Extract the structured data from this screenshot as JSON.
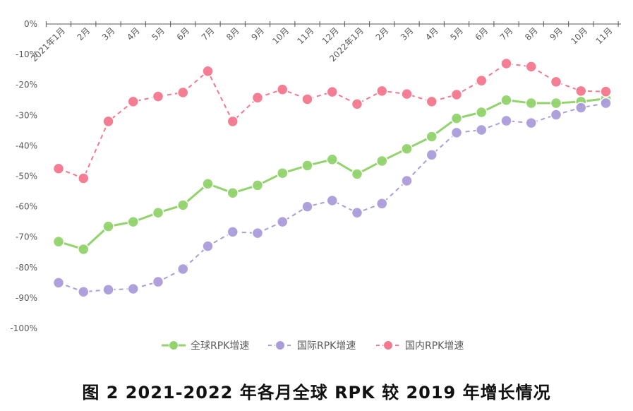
{
  "caption": "图 2 2021-2022 年各月全球 RPK 较 2019 年增长情况",
  "chart_data": {
    "type": "line",
    "title": "",
    "xlabel": "",
    "ylabel": "",
    "ylim": [
      -100,
      0
    ],
    "y_ticks": [
      "0%",
      "-10%",
      "-20%",
      "-30%",
      "-40%",
      "-50%",
      "-60%",
      "-70%",
      "-80%",
      "-90%",
      "-100%"
    ],
    "y_tick_values": [
      0,
      -10,
      -20,
      -30,
      -40,
      -50,
      -60,
      -70,
      -80,
      -90,
      -100
    ],
    "categories": [
      "2021年1月",
      "2月",
      "3月",
      "4月",
      "5月",
      "6月",
      "7月",
      "8月",
      "9月",
      "10月",
      "11月",
      "12月",
      "2022年1月",
      "2月",
      "3月",
      "4月",
      "5月",
      "6月",
      "7月",
      "8月",
      "9月",
      "10月",
      "11月"
    ],
    "legend_position": "bottom",
    "series": [
      {
        "name": "全球RPK增速",
        "color": "#92d36e",
        "dashed": false,
        "values": [
          -71.5,
          -74,
          -66.5,
          -65,
          -62,
          -59.5,
          -52.5,
          -55.5,
          -53,
          -49,
          -46.5,
          -44.5,
          -49.3,
          -45,
          -41,
          -37,
          -31,
          -29,
          -25,
          -26,
          -26,
          -25.5,
          -24.5
        ]
      },
      {
        "name": "国际RPK增速",
        "color": "#ab9ddb",
        "dashed": true,
        "values": [
          -85,
          -88,
          -87.3,
          -87,
          -84.7,
          -80.5,
          -73,
          -68.3,
          -68.7,
          -65,
          -60,
          -58,
          -62,
          -59,
          -51.5,
          -43,
          -35.7,
          -34.8,
          -31.8,
          -32.5,
          -29.8,
          -27.5,
          -26
        ]
      },
      {
        "name": "国内RPK增速",
        "color": "#f4798f",
        "dashed": true,
        "values": [
          -47.5,
          -50.7,
          -32,
          -25.5,
          -23.8,
          -22.5,
          -15.5,
          -32,
          -24.2,
          -21.5,
          -24.7,
          -22.3,
          -26.3,
          -22,
          -23,
          -25.5,
          -23.2,
          -18.6,
          -13,
          -14,
          -19,
          -22,
          -22.2
        ]
      }
    ]
  }
}
